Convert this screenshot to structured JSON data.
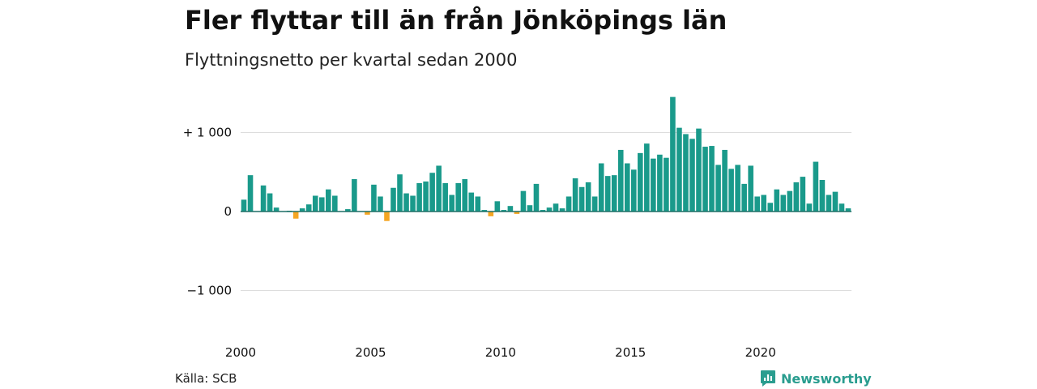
{
  "header": {
    "title": "Fler flyttar till än från Jönköpings län",
    "subtitle": "Flyttningsnetto per kvartal sedan 2000"
  },
  "footer": {
    "source": "Källa: SCB",
    "brand": "Newsworthy"
  },
  "colors": {
    "positive": "#1a9a8b",
    "negative": "#f5a623",
    "grid": "#dddddd",
    "brand": "#2a9d8f"
  },
  "chart_data": {
    "type": "bar",
    "title": "Fler flyttar till än från Jönköpings län",
    "subtitle": "Flyttningsnetto per kvartal sedan 2000",
    "ylim": [
      -1400,
      1500
    ],
    "y_ticks": [
      {
        "value": 1000,
        "label": "+ 1 000"
      },
      {
        "value": 0,
        "label": "0"
      },
      {
        "value": -1000,
        "label": "−1 000"
      }
    ],
    "x_ticks": [
      "2000",
      "2005",
      "2010",
      "2015",
      "2020"
    ],
    "first_year": 2000,
    "grid": true,
    "values": [
      150,
      460,
      0,
      330,
      230,
      50,
      0,
      10,
      -90,
      40,
      90,
      200,
      180,
      280,
      200,
      0,
      30,
      410,
      0,
      -40,
      340,
      190,
      -120,
      300,
      470,
      230,
      200,
      360,
      380,
      490,
      580,
      360,
      210,
      360,
      410,
      240,
      190,
      20,
      -60,
      130,
      20,
      70,
      -30,
      260,
      80,
      350,
      20,
      50,
      100,
      40,
      190,
      420,
      310,
      370,
      190,
      610,
      450,
      460,
      780,
      610,
      530,
      740,
      860,
      670,
      720,
      680,
      1450,
      1060,
      980,
      920,
      1050,
      820,
      830,
      590,
      780,
      540,
      590,
      350,
      580,
      190,
      210,
      110,
      280,
      210,
      260,
      370,
      440,
      100,
      630,
      400,
      210,
      250,
      100,
      40
    ]
  }
}
